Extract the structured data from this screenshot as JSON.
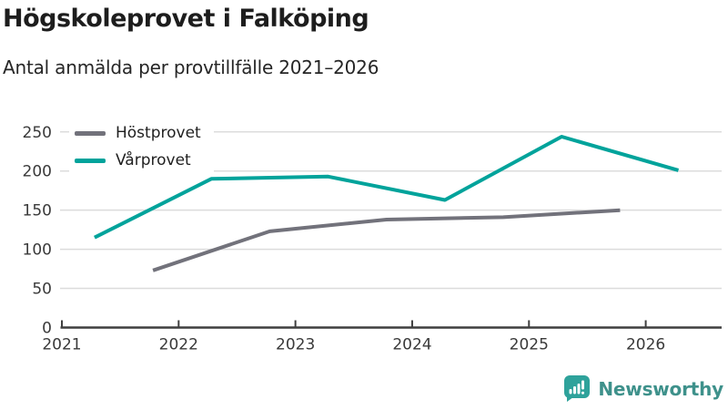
{
  "header": {
    "title": "Högskoleprovet i Falköping",
    "subtitle": "Antal anmälda per provtillfälle 2021–2026"
  },
  "chart_data": {
    "type": "line",
    "title": "Högskoleprovet i Falköping",
    "subtitle": "Antal anmälda per provtillfälle 2021–2026",
    "xlabel": "",
    "ylabel": "",
    "x_ticks": [
      2021,
      2022,
      2023,
      2024,
      2025,
      2026
    ],
    "y_ticks": [
      0,
      50,
      100,
      150,
      200,
      250
    ],
    "xlim": [
      2021,
      2026.65
    ],
    "ylim": [
      0,
      250
    ],
    "grid": "horizontal-only",
    "legend_position": "top-left-inside",
    "series": [
      {
        "name": "Höstprovet",
        "color": "#72727b",
        "x": [
          2021.78,
          2022.78,
          2023.78,
          2024.78,
          2025.78
        ],
        "values": [
          73,
          123,
          138,
          141,
          150
        ]
      },
      {
        "name": "Vårprovet",
        "color": "#00a39b",
        "x": [
          2021.28,
          2022.28,
          2023.28,
          2024.28,
          2025.28,
          2026.28
        ],
        "values": [
          115,
          190,
          193,
          163,
          244,
          201
        ]
      }
    ],
    "axis_color": "#3f3f3f",
    "grid_color": "#dcdcdc",
    "tick_label_color": "#3a3a3a"
  },
  "branding": {
    "logo_text": "Newsworthy",
    "logo_text_color": "#3e918b",
    "logo_icon_color": "#2ea29b"
  }
}
